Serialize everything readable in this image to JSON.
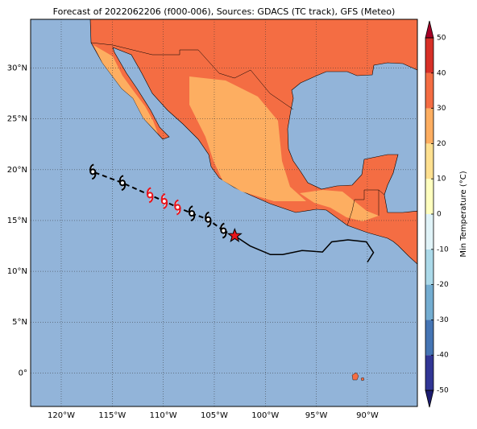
{
  "chart_data": {
    "type": "map",
    "title": "Forecast of 2022062206 (f000-006), Sources: GDACS (TC track), GFS (Meteo)",
    "xlim": [
      -123,
      -85.1
    ],
    "ylim": [
      -3.3,
      34.8
    ],
    "xticks": [
      {
        "value": -120,
        "label": "120°W"
      },
      {
        "value": -115,
        "label": "115°W"
      },
      {
        "value": -110,
        "label": "110°W"
      },
      {
        "value": -105,
        "label": "105°W"
      },
      {
        "value": -100,
        "label": "100°W"
      },
      {
        "value": -95,
        "label": "95°W"
      },
      {
        "value": -90,
        "label": "90°W"
      }
    ],
    "yticks": [
      {
        "value": 0,
        "label": "0°"
      },
      {
        "value": 5,
        "label": "5°N"
      },
      {
        "value": 10,
        "label": "10°N"
      },
      {
        "value": 15,
        "label": "15°N"
      },
      {
        "value": 20,
        "label": "20°N"
      },
      {
        "value": 25,
        "label": "25°N"
      },
      {
        "value": 30,
        "label": "30°N"
      }
    ],
    "grid": true,
    "colorbar": {
      "label": "Min Temperature (°C)",
      "lim": [
        -50,
        50
      ],
      "ticks": [
        -50,
        -40,
        -30,
        -20,
        -10,
        0,
        10,
        20,
        30,
        40,
        50
      ],
      "colors": [
        "#313695",
        "#4575b4",
        "#74add1",
        "#abd9e9",
        "#e0f3f8",
        "#ffffbf",
        "#fee090",
        "#fdae61",
        "#f46d43",
        "#d73027"
      ],
      "under_color": "#1c1c70",
      "over_color": "#a50026"
    },
    "observed_track": {
      "color": "#000000",
      "lon": [
        -103.0,
        -101.5,
        -99.5,
        -98.3,
        -96.4,
        -94.4,
        -93.5,
        -91.9,
        -90.1,
        -89.4,
        -90.0
      ],
      "lat": [
        13.5,
        12.5,
        11.65,
        11.65,
        12.05,
        11.9,
        12.9,
        13.1,
        12.9,
        11.85,
        10.9
      ]
    },
    "current": {
      "lon": -103.0,
      "lat": 13.5,
      "color": "#e8141b"
    },
    "forecast_track": {
      "lon": [
        -104.1,
        -105.6,
        -107.2,
        -108.6,
        -109.9,
        -111.3,
        -114.0,
        -116.9
      ],
      "lat": [
        14.0,
        15.1,
        15.7,
        16.3,
        16.9,
        17.5,
        18.7,
        19.8
      ],
      "colors": [
        "#000000",
        "#000000",
        "#000000",
        "#e8141b",
        "#e8141b",
        "#e8141b",
        "#000000",
        "#000000"
      ]
    }
  }
}
